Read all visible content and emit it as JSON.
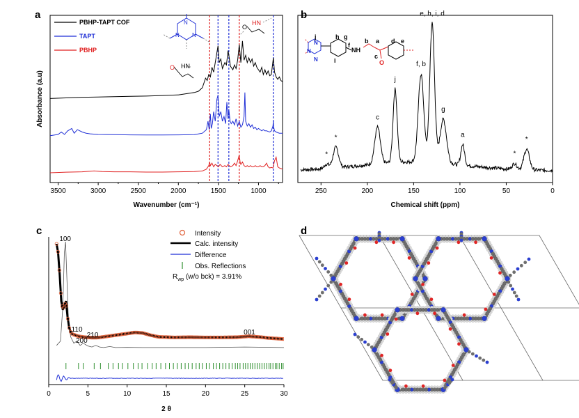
{
  "panels": {
    "a": {
      "letter": "a"
    },
    "b": {
      "letter": "b"
    },
    "c": {
      "letter": "c"
    },
    "d": {
      "letter": "d"
    }
  },
  "chart_data": [
    {
      "id": "a",
      "type": "line",
      "title": "",
      "xlabel": "Wavenumber (cm⁻¹)",
      "ylabel": "Absorbance (a.u)",
      "xlim": [
        3600,
        700
      ],
      "xticks": [
        3500,
        3000,
        2500,
        2000,
        1500,
        1000
      ],
      "xtick_labels": [
        "3500",
        "3000",
        "2500",
        "2000",
        "1500",
        "1000"
      ],
      "legend": [
        {
          "name": "PBHP-TAPT COF",
          "color": "#000000"
        },
        {
          "name": "TAPT",
          "color": "#1f2fd6"
        },
        {
          "name": "PBHP",
          "color": "#e02020"
        }
      ],
      "vlines": [
        {
          "x": 1610,
          "color": "#e02020"
        },
        {
          "x": 1505,
          "color": "#1f2fd6"
        },
        {
          "x": 1370,
          "color": "#1f2fd6"
        },
        {
          "x": 1240,
          "color": "#e02020"
        },
        {
          "x": 815,
          "color": "#1f2fd6"
        }
      ],
      "structure_labels": {
        "triazine_N": "N",
        "cof_amine": "HN",
        "cof_carbonyl": "O",
        "pbhp_nh": "HN",
        "pbhp_o": "O"
      },
      "series": [
        {
          "name": "PBHP-TAPT COF",
          "color": "#000000",
          "offset": 0.62,
          "x": [
            3600,
            3400,
            3200,
            3000,
            2800,
            2600,
            2400,
            2200,
            2000,
            1900,
            1800,
            1750,
            1700,
            1680,
            1660,
            1640,
            1620,
            1600,
            1580,
            1560,
            1540,
            1520,
            1505,
            1490,
            1470,
            1450,
            1420,
            1400,
            1380,
            1365,
            1350,
            1320,
            1300,
            1280,
            1260,
            1240,
            1220,
            1200,
            1180,
            1160,
            1140,
            1120,
            1100,
            1080,
            1060,
            1040,
            1020,
            1000,
            980,
            960,
            940,
            920,
            900,
            880,
            860,
            840,
            815,
            800,
            780,
            760,
            740,
            720,
            700
          ],
          "y": [
            0.0,
            0.005,
            0.01,
            0.012,
            0.015,
            0.018,
            0.02,
            0.025,
            0.03,
            0.04,
            0.05,
            0.06,
            0.09,
            0.13,
            0.17,
            0.15,
            0.2,
            0.18,
            0.26,
            0.22,
            0.3,
            0.38,
            0.44,
            0.3,
            0.33,
            0.25,
            0.3,
            0.28,
            0.4,
            0.34,
            0.27,
            0.24,
            0.28,
            0.25,
            0.32,
            0.45,
            0.3,
            0.48,
            0.32,
            0.36,
            0.3,
            0.34,
            0.3,
            0.33,
            0.27,
            0.3,
            0.26,
            0.24,
            0.22,
            0.26,
            0.2,
            0.24,
            0.2,
            0.23,
            0.19,
            0.2,
            0.34,
            0.22,
            0.18,
            0.16,
            0.18,
            0.15,
            0.14
          ]
        },
        {
          "name": "TAPT",
          "color": "#1f2fd6",
          "offset": 0.31,
          "x": [
            3600,
            3500,
            3460,
            3420,
            3380,
            3330,
            3300,
            3260,
            3200,
            3150,
            3100,
            3000,
            2800,
            2600,
            2400,
            2200,
            2000,
            1800,
            1700,
            1650,
            1630,
            1615,
            1600,
            1590,
            1575,
            1560,
            1540,
            1520,
            1505,
            1490,
            1470,
            1450,
            1430,
            1410,
            1395,
            1380,
            1370,
            1355,
            1340,
            1320,
            1300,
            1280,
            1260,
            1240,
            1220,
            1200,
            1180,
            1170,
            1160,
            1140,
            1120,
            1100,
            1080,
            1060,
            1040,
            1020,
            1000,
            980,
            960,
            940,
            920,
            900,
            880,
            860,
            840,
            820,
            815,
            810,
            800,
            780,
            760,
            740,
            720,
            700
          ],
          "y": [
            0.0,
            0.01,
            0.03,
            0.01,
            0.04,
            0.06,
            0.02,
            0.05,
            0.03,
            0.02,
            0.015,
            0.01,
            0.008,
            0.006,
            0.005,
            0.005,
            0.006,
            0.008,
            0.02,
            0.05,
            0.12,
            0.05,
            0.18,
            0.06,
            0.1,
            0.2,
            0.12,
            0.3,
            0.34,
            0.16,
            0.2,
            0.12,
            0.16,
            0.1,
            0.28,
            0.14,
            0.22,
            0.12,
            0.1,
            0.12,
            0.09,
            0.14,
            0.08,
            0.12,
            0.07,
            0.09,
            0.16,
            0.36,
            0.12,
            0.08,
            0.1,
            0.07,
            0.09,
            0.06,
            0.07,
            0.05,
            0.06,
            0.05,
            0.04,
            0.05,
            0.04,
            0.04,
            0.035,
            0.03,
            0.04,
            0.08,
            0.12,
            0.07,
            0.04,
            0.03,
            0.025,
            0.02,
            0.02,
            0.02
          ]
        },
        {
          "name": "PBHP",
          "color": "#e02020",
          "offset": 0.0,
          "x": [
            3600,
            3400,
            3200,
            3050,
            2950,
            2800,
            2600,
            2400,
            2200,
            2000,
            1800,
            1700,
            1650,
            1620,
            1610,
            1600,
            1580,
            1560,
            1540,
            1520,
            1500,
            1480,
            1450,
            1420,
            1400,
            1380,
            1350,
            1320,
            1300,
            1280,
            1260,
            1240,
            1230,
            1220,
            1200,
            1180,
            1160,
            1140,
            1120,
            1100,
            1080,
            1060,
            1040,
            1020,
            1000,
            980,
            960,
            940,
            920,
            900,
            880,
            860,
            840,
            820,
            800,
            780,
            760,
            740,
            720,
            700
          ],
          "y": [
            0.0,
            0.005,
            0.008,
            0.015,
            0.01,
            0.008,
            0.008,
            0.006,
            0.006,
            0.008,
            0.01,
            0.015,
            0.03,
            0.06,
            0.09,
            0.06,
            0.08,
            0.05,
            0.07,
            0.06,
            0.05,
            0.07,
            0.05,
            0.06,
            0.05,
            0.07,
            0.05,
            0.06,
            0.08,
            0.06,
            0.1,
            0.15,
            0.09,
            0.07,
            0.09,
            0.06,
            0.05,
            0.06,
            0.05,
            0.06,
            0.05,
            0.05,
            0.06,
            0.05,
            0.05,
            0.06,
            0.05,
            0.05,
            0.06,
            0.08,
            0.05,
            0.04,
            0.045,
            0.04,
            0.1,
            0.13,
            0.05,
            0.04,
            0.035,
            0.03
          ]
        }
      ]
    },
    {
      "id": "b",
      "type": "line",
      "title": "",
      "xlabel": "Chemical shift (ppm)",
      "ylabel": "",
      "xlim": [
        275,
        0
      ],
      "xticks": [
        250,
        200,
        150,
        100,
        50,
        0
      ],
      "xtick_labels": [
        "250",
        "200",
        "150",
        "100",
        "50",
        "0"
      ],
      "peaks": [
        {
          "shift": 244,
          "height": 0.03,
          "width": 2.5,
          "label": "*"
        },
        {
          "shift": 234,
          "height": 0.14,
          "width": 3.0,
          "label": "*"
        },
        {
          "shift": 189,
          "height": 0.25,
          "width": 3.0,
          "label": "c"
        },
        {
          "shift": 170,
          "height": 0.5,
          "width": 2.2,
          "label": "j"
        },
        {
          "shift": 142,
          "height": 0.6,
          "width": 3.0,
          "label": "f, b"
        },
        {
          "shift": 130,
          "height": 0.95,
          "width": 2.6,
          "label": "e, h, i, d"
        },
        {
          "shift": 118,
          "height": 0.3,
          "width": 3.5,
          "label": "g"
        },
        {
          "shift": 97,
          "height": 0.14,
          "width": 2.0,
          "label": "a"
        },
        {
          "shift": 41,
          "height": 0.04,
          "width": 2.5,
          "label": "*"
        },
        {
          "shift": 28,
          "height": 0.14,
          "width": 3.0,
          "label": "*"
        }
      ],
      "structure_labels": [
        "j",
        "h",
        "g",
        "f",
        "NH",
        "b",
        "a",
        "d",
        "e",
        "i",
        "c",
        "O",
        "N",
        "N",
        "N"
      ]
    },
    {
      "id": "c",
      "type": "line",
      "title": "",
      "xlabel": "2 θ",
      "ylabel": "",
      "xlim": [
        0,
        30
      ],
      "xticks": [
        0,
        5,
        10,
        15,
        20,
        25,
        30
      ],
      "xtick_labels": [
        "0",
        "5",
        "10",
        "15",
        "20",
        "25",
        "30"
      ],
      "legend": [
        {
          "name": "Intensity",
          "marker": "circle",
          "color": "#e0613a"
        },
        {
          "name": "Calc. intensity",
          "color": "#000000"
        },
        {
          "name": "Difference",
          "color": "#1f2fd6"
        },
        {
          "name": "Obs. Reflections",
          "marker": "tick",
          "color": "#2f8f2f"
        }
      ],
      "rwp_label": "R",
      "rwp_sub": "wp",
      "rwp_text": "(w/o bck) = 3.91%",
      "peak_labels": [
        {
          "text": "100",
          "x": 2.1
        },
        {
          "text": "110",
          "x": 3.6
        },
        {
          "text": "200",
          "x": 4.2
        },
        {
          "text": "210",
          "x": 5.6
        },
        {
          "text": "001",
          "x": 25.6
        }
      ],
      "observed_2theta": [
        1.0,
        1.2,
        1.4,
        1.6,
        1.8,
        2.0,
        2.2,
        2.4,
        2.6,
        2.8,
        3.0,
        3.4,
        3.8,
        4.2,
        4.6,
        5.0,
        5.5,
        6.0,
        6.5,
        7.0,
        8.0,
        9.0,
        10.0,
        11.0,
        12.0,
        13.0,
        14.0,
        16.0,
        18.0,
        20.0,
        22.0,
        24.0,
        25.5,
        27.0,
        28.0,
        29.0,
        30.0
      ],
      "observed_intensity": [
        100,
        92,
        72,
        48,
        40,
        44,
        48,
        34,
        24,
        20,
        18,
        17,
        16,
        15.6,
        15.2,
        15,
        14.8,
        14.8,
        15,
        15.5,
        16.5,
        17.5,
        18.5,
        19.5,
        19,
        17,
        15.5,
        15,
        15.2,
        15,
        15,
        15.2,
        16,
        15.3,
        14.5,
        14,
        13.5
      ],
      "single_peak_2theta": [
        1.0,
        1.5,
        1.8,
        2.0,
        2.15,
        2.3,
        2.5,
        2.8,
        3.2,
        3.6,
        4.0,
        4.4,
        5.0,
        5.5,
        6.0,
        6.5,
        7.0,
        7.8,
        8.5,
        10.0,
        12.0,
        15.0,
        20.0,
        25.0,
        30.0
      ],
      "single_peak_intensity": [
        4,
        8,
        40,
        90,
        100,
        70,
        30,
        12,
        6,
        8,
        4,
        6,
        3.5,
        2.5,
        4,
        2.5,
        2,
        3,
        2,
        2.2,
        2,
        2,
        2,
        2.5,
        2
      ],
      "reflections_2theta": [
        2.2,
        3.8,
        4.4,
        5.8,
        6.6,
        7.6,
        8.2,
        8.9,
        9.4,
        10.1,
        10.8,
        11.4,
        11.9,
        12.6,
        13.2,
        13.7,
        14.3,
        14.9,
        15.4,
        15.9,
        16.4,
        16.9,
        17.4,
        17.8,
        18.3,
        18.8,
        19.2,
        19.6,
        20.1,
        20.5,
        21.0,
        21.4,
        21.8,
        22.2,
        22.6,
        23.0,
        23.4,
        23.8,
        24.1,
        24.4,
        24.8,
        25.1,
        25.4,
        25.7,
        26.0,
        26.3,
        26.6,
        26.9,
        27.2,
        27.5,
        27.8,
        28.1,
        28.3,
        28.6,
        28.9,
        29.1,
        29.4,
        29.7,
        29.9
      ]
    }
  ],
  "lattice": {
    "description": "hexagonal COF lattice",
    "atom_colors": {
      "carbon": "#6e6e6e",
      "hydrogen": "#d8d8d8",
      "nitrogen": "#2b3fd0",
      "oxygen": "#e02525"
    }
  }
}
